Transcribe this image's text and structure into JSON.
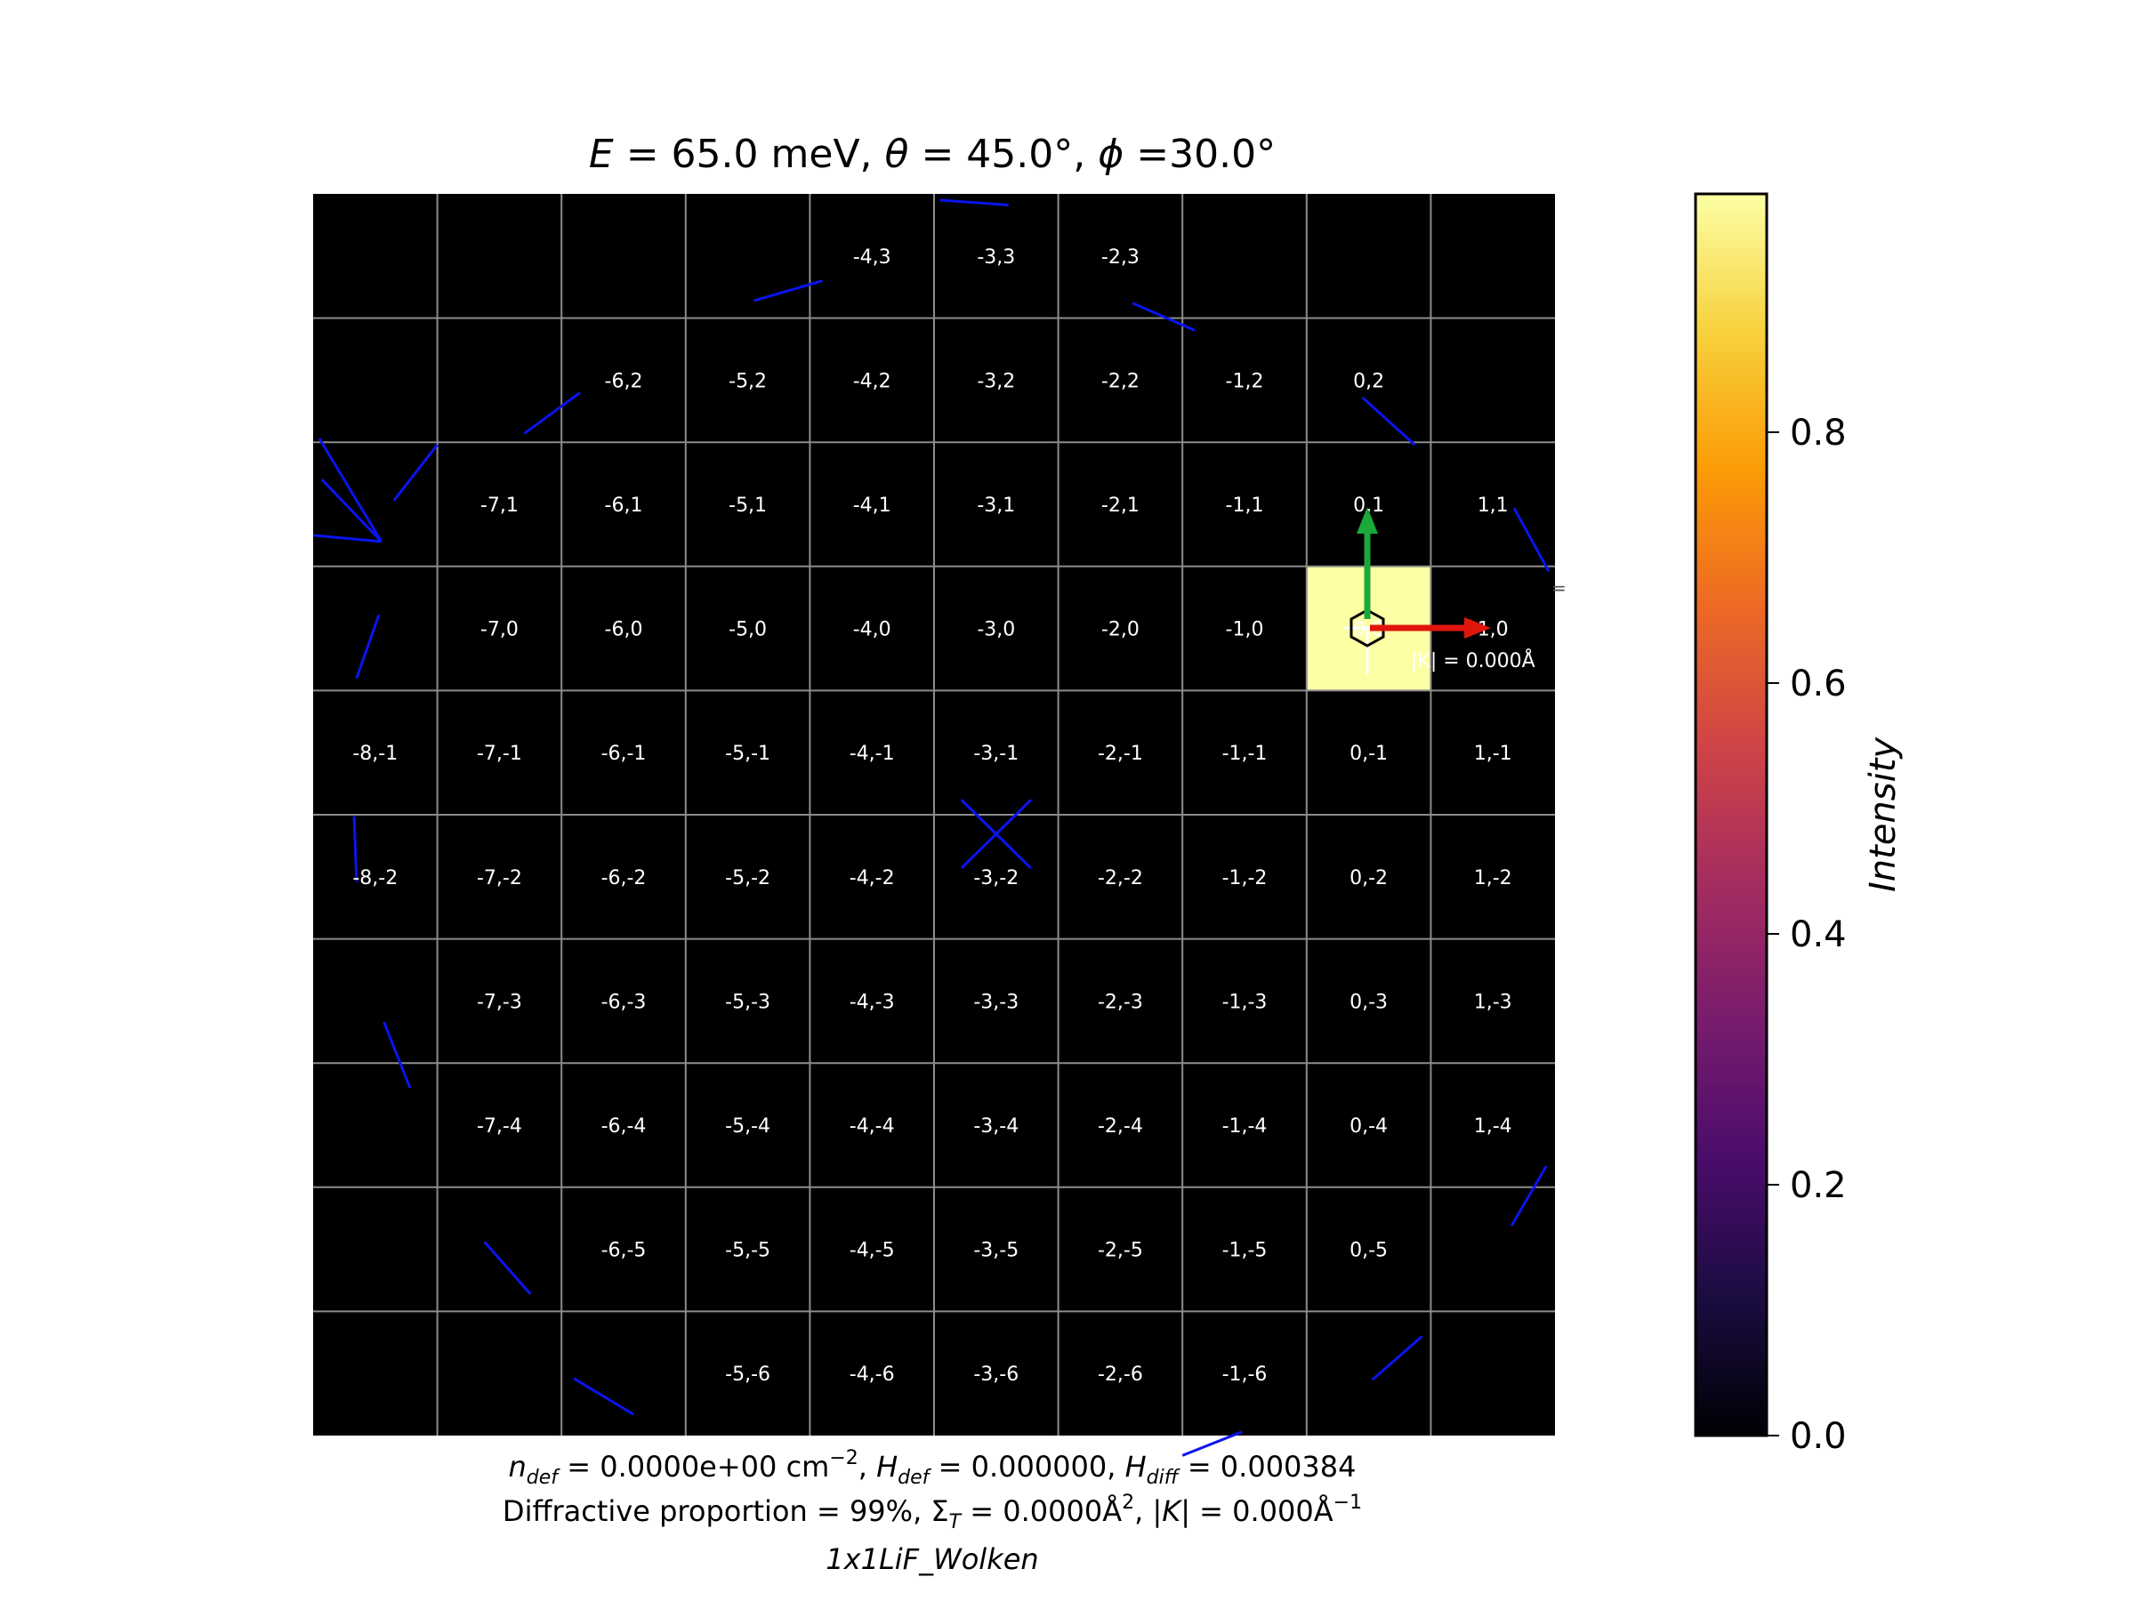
{
  "chart_data": {
    "type": "heatmap",
    "title": {
      "e_symbol": "E",
      "e_text": " = 65.0 meV, ",
      "theta_symbol": "θ",
      "theta_text": " = 45.0°, ",
      "phi_symbol": "ϕ",
      "phi_text": " =30.0°"
    },
    "x_range": [
      -8.5,
      1.5
    ],
    "y_range": [
      -6.5,
      3.5
    ],
    "grid": true,
    "cells": [
      {
        "h": -4,
        "k": 3,
        "label": "-4,3"
      },
      {
        "h": -3,
        "k": 3,
        "label": "-3,3"
      },
      {
        "h": -2,
        "k": 3,
        "label": "-2,3"
      },
      {
        "h": -6,
        "k": 2,
        "label": "-6,2"
      },
      {
        "h": -5,
        "k": 2,
        "label": "-5,2"
      },
      {
        "h": -4,
        "k": 2,
        "label": "-4,2"
      },
      {
        "h": -3,
        "k": 2,
        "label": "-3,2"
      },
      {
        "h": -2,
        "k": 2,
        "label": "-2,2"
      },
      {
        "h": -1,
        "k": 2,
        "label": "-1,2"
      },
      {
        "h": 0,
        "k": 2,
        "label": "0,2"
      },
      {
        "h": -7,
        "k": 1,
        "label": "-7,1"
      },
      {
        "h": -6,
        "k": 1,
        "label": "-6,1"
      },
      {
        "h": -5,
        "k": 1,
        "label": "-5,1"
      },
      {
        "h": -4,
        "k": 1,
        "label": "-4,1"
      },
      {
        "h": -3,
        "k": 1,
        "label": "-3,1"
      },
      {
        "h": -2,
        "k": 1,
        "label": "-2,1"
      },
      {
        "h": -1,
        "k": 1,
        "label": "-1,1"
      },
      {
        "h": 0,
        "k": 1,
        "label": "0,1"
      },
      {
        "h": 1,
        "k": 1,
        "label": "1,1"
      },
      {
        "h": -7,
        "k": 0,
        "label": "-7,0"
      },
      {
        "h": -6,
        "k": 0,
        "label": "-6,0"
      },
      {
        "h": -5,
        "k": 0,
        "label": "-5,0"
      },
      {
        "h": -4,
        "k": 0,
        "label": "-4,0"
      },
      {
        "h": -3,
        "k": 0,
        "label": "-3,0"
      },
      {
        "h": -2,
        "k": 0,
        "label": "-2,0"
      },
      {
        "h": -1,
        "k": 0,
        "label": "-1,0"
      },
      {
        "h": 0,
        "k": 0,
        "label": "0,0"
      },
      {
        "h": 1,
        "k": 0,
        "label": "1,0"
      },
      {
        "h": -8,
        "k": -1,
        "label": "-8,-1"
      },
      {
        "h": -7,
        "k": -1,
        "label": "-7,-1"
      },
      {
        "h": -6,
        "k": -1,
        "label": "-6,-1"
      },
      {
        "h": -5,
        "k": -1,
        "label": "-5,-1"
      },
      {
        "h": -4,
        "k": -1,
        "label": "-4,-1"
      },
      {
        "h": -3,
        "k": -1,
        "label": "-3,-1"
      },
      {
        "h": -2,
        "k": -1,
        "label": "-2,-1"
      },
      {
        "h": -1,
        "k": -1,
        "label": "-1,-1"
      },
      {
        "h": 0,
        "k": -1,
        "label": "0,-1"
      },
      {
        "h": 1,
        "k": -1,
        "label": "1,-1"
      },
      {
        "h": -8,
        "k": -2,
        "label": "-8,-2"
      },
      {
        "h": -7,
        "k": -2,
        "label": "-7,-2"
      },
      {
        "h": -6,
        "k": -2,
        "label": "-6,-2"
      },
      {
        "h": -5,
        "k": -2,
        "label": "-5,-2"
      },
      {
        "h": -4,
        "k": -2,
        "label": "-4,-2"
      },
      {
        "h": -3,
        "k": -2,
        "label": "-3,-2"
      },
      {
        "h": -2,
        "k": -2,
        "label": "-2,-2"
      },
      {
        "h": -1,
        "k": -2,
        "label": "-1,-2"
      },
      {
        "h": 0,
        "k": -2,
        "label": "0,-2"
      },
      {
        "h": 1,
        "k": -2,
        "label": "1,-2"
      },
      {
        "h": -7,
        "k": -3,
        "label": "-7,-3"
      },
      {
        "h": -6,
        "k": -3,
        "label": "-6,-3"
      },
      {
        "h": -5,
        "k": -3,
        "label": "-5,-3"
      },
      {
        "h": -4,
        "k": -3,
        "label": "-4,-3"
      },
      {
        "h": -3,
        "k": -3,
        "label": "-3,-3"
      },
      {
        "h": -2,
        "k": -3,
        "label": "-2,-3"
      },
      {
        "h": -1,
        "k": -3,
        "label": "-1,-3"
      },
      {
        "h": 0,
        "k": -3,
        "label": "0,-3"
      },
      {
        "h": 1,
        "k": -3,
        "label": "1,-3"
      },
      {
        "h": -7,
        "k": -4,
        "label": "-7,-4"
      },
      {
        "h": -6,
        "k": -4,
        "label": "-6,-4"
      },
      {
        "h": -5,
        "k": -4,
        "label": "-5,-4"
      },
      {
        "h": -4,
        "k": -4,
        "label": "-4,-4"
      },
      {
        "h": -3,
        "k": -4,
        "label": "-3,-4"
      },
      {
        "h": -2,
        "k": -4,
        "label": "-2,-4"
      },
      {
        "h": -1,
        "k": -4,
        "label": "-1,-4"
      },
      {
        "h": 0,
        "k": -4,
        "label": "0,-4"
      },
      {
        "h": 1,
        "k": -4,
        "label": "1,-4"
      },
      {
        "h": -6,
        "k": -5,
        "label": "-6,-5"
      },
      {
        "h": -5,
        "k": -5,
        "label": "-5,-5"
      },
      {
        "h": -4,
        "k": -5,
        "label": "-4,-5"
      },
      {
        "h": -3,
        "k": -5,
        "label": "-3,-5"
      },
      {
        "h": -2,
        "k": -5,
        "label": "-2,-5"
      },
      {
        "h": -1,
        "k": -5,
        "label": "-1,-5"
      },
      {
        "h": 0,
        "k": -5,
        "label": "0,-5"
      },
      {
        "h": -5,
        "k": -6,
        "label": "-5,-6"
      },
      {
        "h": -4,
        "k": -6,
        "label": "-4,-6"
      },
      {
        "h": -3,
        "k": -6,
        "label": "-3,-6"
      },
      {
        "h": -2,
        "k": -6,
        "label": "-2,-6"
      },
      {
        "h": -1,
        "k": -6,
        "label": "-1,-6"
      }
    ],
    "intensity": [
      {
        "h": 0,
        "k": 0,
        "value": 0.99
      }
    ],
    "ewald_segments": [
      [
        [
          -4.95,
          2.64
        ],
        [
          -4.4,
          2.8
        ]
      ],
      [
        [
          -3.45,
          3.45
        ],
        [
          -2.9,
          3.41
        ]
      ],
      [
        [
          -1.9,
          2.62
        ],
        [
          -1.4,
          2.4
        ]
      ],
      [
        [
          -6.8,
          1.57
        ],
        [
          -6.35,
          1.9
        ]
      ],
      [
        [
          -0.05,
          1.86
        ],
        [
          0.37,
          1.48
        ]
      ],
      [
        [
          -7.85,
          1.03
        ],
        [
          -7.5,
          1.48
        ]
      ],
      [
        [
          -7.95,
          0.7
        ],
        [
          -8.45,
          1.53
        ]
      ],
      [
        [
          -7.95,
          0.7
        ],
        [
          -8.43,
          1.2
        ]
      ],
      [
        [
          -7.95,
          0.7
        ],
        [
          -8.5,
          0.75
        ]
      ],
      [
        [
          1.17,
          0.97
        ],
        [
          1.45,
          0.46
        ]
      ],
      [
        [
          -8.15,
          -0.4
        ],
        [
          -7.97,
          0.11
        ]
      ],
      [
        [
          -3.28,
          -1.38
        ],
        [
          -2.72,
          -1.93
        ]
      ],
      [
        [
          -3.28,
          -1.93
        ],
        [
          -2.72,
          -1.38
        ]
      ],
      [
        [
          -8.17,
          -1.51
        ],
        [
          -8.15,
          -2.04
        ]
      ],
      [
        [
          -7.93,
          -3.17
        ],
        [
          -7.72,
          -3.7
        ]
      ],
      [
        [
          1.43,
          -4.33
        ],
        [
          1.15,
          -4.81
        ]
      ],
      [
        [
          -7.12,
          -4.94
        ],
        [
          -6.75,
          -5.36
        ]
      ],
      [
        [
          0.43,
          -5.7
        ],
        [
          0.03,
          -6.05
        ]
      ],
      [
        [
          -6.4,
          -6.04
        ],
        [
          -5.92,
          -6.33
        ]
      ],
      [
        [
          -1.5,
          -6.66
        ],
        [
          -1.02,
          -6.47
        ]
      ]
    ],
    "origin_extras": {
      "k_label": "|K| = 0.000Å",
      "edge_glyph": "="
    },
    "colorbar": {
      "label": "Intensity",
      "range": [
        0,
        0.99
      ],
      "ticks": [
        {
          "value": 0.0,
          "label": "0.0"
        },
        {
          "value": 0.2,
          "label": "0.2"
        },
        {
          "value": 0.4,
          "label": "0.4"
        },
        {
          "value": 0.6,
          "label": "0.6"
        },
        {
          "value": 0.8,
          "label": "0.8"
        }
      ],
      "colors": [
        "#000004",
        "#1b0c41",
        "#4a0c6b",
        "#781c6d",
        "#a52c60",
        "#cf4446",
        "#ed6925",
        "#fb9b06",
        "#f7d13d",
        "#fcffa4"
      ]
    },
    "footer": {
      "line1": {
        "n_sym": "n",
        "n_sub": "def",
        "n_val": " = 0.0000e+00 cm",
        "n_exp": "−2",
        "sep1": ", ",
        "h_sym": "H",
        "h_sub": "def",
        "h_val": " = 0.000000, ",
        "hd_sym": "H",
        "hd_sub": "diff",
        "hd_val": " = 0.000384"
      },
      "line2": {
        "prop": "Diffractive proportion = 99%, Σ",
        "sig_sub": "T",
        "sig_val": " = 0.0000Å",
        "sig_exp": "2",
        "sep": ", |",
        "k_sym": "K",
        "k_val": "| = 0.000Å",
        "k_exp": "−1"
      },
      "line3": "1x1LiF_Wolken"
    }
  }
}
